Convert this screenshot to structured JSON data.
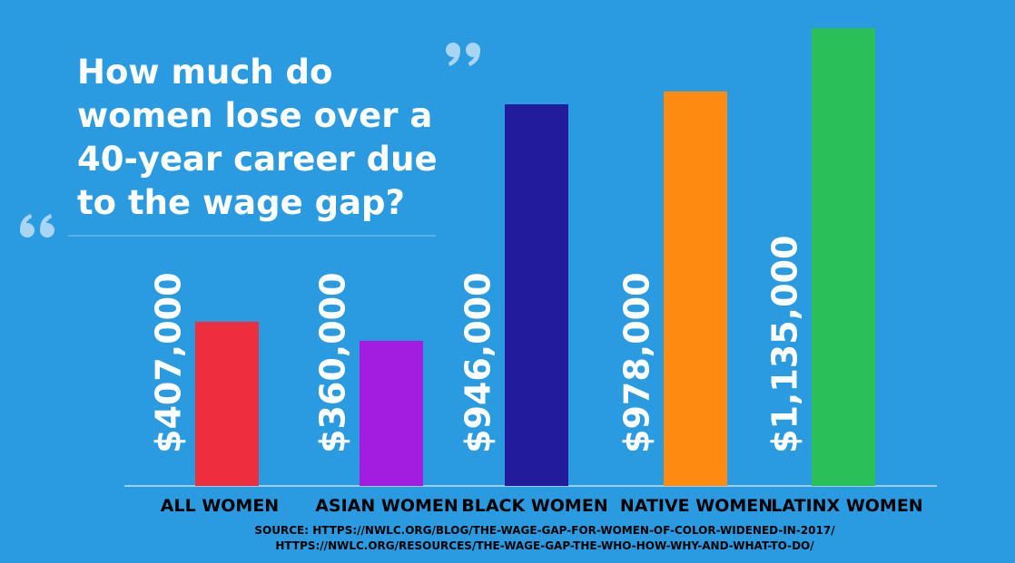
{
  "chart_data": {
    "type": "bar",
    "title": "How much do women lose over a 40-year career due to the wage gap?",
    "categories": [
      "ALL WOMEN",
      "ASIAN WOMEN",
      "BLACK WOMEN",
      "NATIVE WOMEN",
      "LATINX WOMEN"
    ],
    "values": [
      407000,
      360000,
      946000,
      978000,
      1135000
    ],
    "value_labels": [
      "$407,000",
      "$360,000",
      "$946,000",
      "$978,000",
      "$1,135,000"
    ],
    "colors": [
      "#ee2e3f",
      "#a21de0",
      "#221b9b",
      "#ff8a12",
      "#2bbf5a"
    ],
    "source": [
      "SOURCE: HTTPS://NWLC.ORG/BLOG/THE-WAGE-GAP-FOR-WOMEN-OF-COLOR-WIDENED-IN-2017/",
      "HTTPS://NWLC.ORG/RESOURCES/THE-WAGE-GAP-THE-WHO-HOW-WHY-AND-WHAT-TO-DO/"
    ]
  }
}
